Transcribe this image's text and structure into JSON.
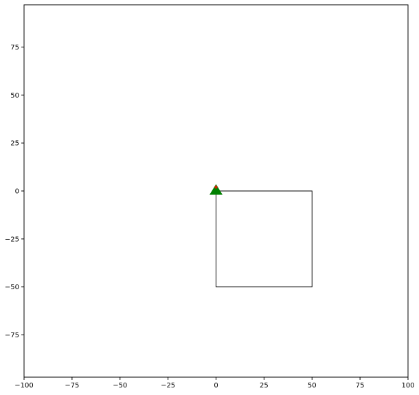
{
  "chart_data": {
    "type": "scatter",
    "title": "",
    "xlabel": "",
    "ylabel": "",
    "xlim": [
      -100,
      100
    ],
    "ylim": [
      -97,
      97
    ],
    "grid": false,
    "x_ticks": [
      -100,
      -75,
      -50,
      -25,
      0,
      25,
      50,
      75,
      100
    ],
    "y_ticks": [
      75,
      50,
      25,
      0,
      -25,
      -50,
      -75
    ],
    "x_tick_labels": [
      "−100",
      "−75",
      "−50",
      "−25",
      "0",
      "25",
      "50",
      "75",
      "100"
    ],
    "y_tick_labels": [
      "75",
      "50",
      "25",
      "0",
      "−25",
      "−50",
      "−75"
    ],
    "shapes": [
      {
        "type": "rectangle",
        "x": [
          0,
          50
        ],
        "y": [
          -50,
          0
        ],
        "stroke": "#000000",
        "fill": "none"
      }
    ],
    "markers": [
      {
        "x": 0,
        "y": 0,
        "marker": "triangle-up",
        "color": "#008000"
      },
      {
        "x": 0,
        "y": 2,
        "marker": "dot",
        "color": "#cc2200"
      }
    ]
  }
}
